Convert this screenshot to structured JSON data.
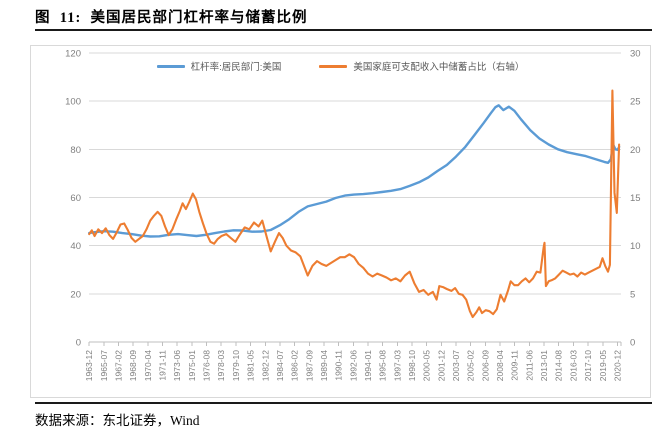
{
  "figure": {
    "label": "图  11:  美国居民部门杠杆率与储蓄比例",
    "source": "数据来源：东北证券，Wind"
  },
  "chart_data": {
    "type": "line",
    "title": "美国居民部门杠杆率与储蓄比例",
    "grid": "horizontal",
    "legend_position": "top-center",
    "colors": {
      "leverage": "#5B9BD5",
      "saving": "#ED7D31",
      "gridline": "#d9d9d9",
      "axis_line": "#bfbfbf",
      "tick_text": "#7f7f7f"
    },
    "legend": [
      {
        "name": "杠杆率:居民部门:美国",
        "color": "#5B9BD5",
        "axis": "left"
      },
      {
        "name": "美国家庭可支配收入中储蓄占比（右轴）",
        "color": "#ED7D31",
        "axis": "right"
      }
    ],
    "y_left": {
      "min": 0,
      "max": 120,
      "step": 20,
      "ticks": [
        0,
        20,
        40,
        60,
        80,
        100,
        120
      ]
    },
    "y_right": {
      "min": 0,
      "max": 30,
      "step": 5,
      "ticks": [
        0,
        5,
        10,
        15,
        20,
        25,
        30
      ]
    },
    "x_axis": {
      "type": "date",
      "first": "1963-12",
      "last": "2020-12",
      "label_interval_months": 19,
      "labels": [
        "1963-12",
        "1965-07",
        "1967-02",
        "1968-09",
        "1970-04",
        "1971-11",
        "1973-06",
        "1975-01",
        "1976-08",
        "1978-03",
        "1979-10",
        "1981-05",
        "1982-12",
        "1984-07",
        "1986-02",
        "1987-09",
        "1989-04",
        "1990-11",
        "1992-06",
        "1994-01",
        "1995-08",
        "1997-03",
        "1998-10",
        "2000-05",
        "2001-12",
        "2003-07",
        "2005-02",
        "2006-09",
        "2008-04",
        "2009-11",
        "2011-06",
        "2013-01",
        "2014-08",
        "2016-03",
        "2017-10",
        "2019-05",
        "2020-12"
      ]
    },
    "series": [
      {
        "name": "杠杆率:居民部门:美国",
        "axis": "left",
        "color": "#5B9BD5",
        "points": [
          [
            1963.92,
            45.2
          ],
          [
            1964.5,
            45.6
          ],
          [
            1965.5,
            46.0
          ],
          [
            1966.5,
            45.8
          ],
          [
            1967.5,
            45.2
          ],
          [
            1968.5,
            44.8
          ],
          [
            1969.5,
            44.2
          ],
          [
            1970.5,
            43.8
          ],
          [
            1971.5,
            43.9
          ],
          [
            1972.5,
            44.5
          ],
          [
            1973.5,
            44.8
          ],
          [
            1974.5,
            44.4
          ],
          [
            1975.5,
            44.0
          ],
          [
            1976.5,
            44.5
          ],
          [
            1977.5,
            45.2
          ],
          [
            1978.5,
            45.9
          ],
          [
            1979.5,
            46.4
          ],
          [
            1980.5,
            46.3
          ],
          [
            1981.5,
            45.8
          ],
          [
            1982.5,
            45.9
          ],
          [
            1983.5,
            46.5
          ],
          [
            1984.5,
            48.5
          ],
          [
            1985.5,
            51.0
          ],
          [
            1986.5,
            54.0
          ],
          [
            1987.5,
            56.3
          ],
          [
            1988.5,
            57.3
          ],
          [
            1989.5,
            58.3
          ],
          [
            1990.5,
            59.8
          ],
          [
            1991.5,
            60.8
          ],
          [
            1992.5,
            61.2
          ],
          [
            1993.5,
            61.4
          ],
          [
            1994.5,
            61.8
          ],
          [
            1995.5,
            62.3
          ],
          [
            1996.5,
            62.8
          ],
          [
            1997.5,
            63.5
          ],
          [
            1998.5,
            64.8
          ],
          [
            1999.5,
            66.3
          ],
          [
            2000.5,
            68.3
          ],
          [
            2001.5,
            71.0
          ],
          [
            2002.5,
            73.5
          ],
          [
            2003.5,
            77.0
          ],
          [
            2004.5,
            81.0
          ],
          [
            2005.5,
            86.0
          ],
          [
            2006.5,
            91.0
          ],
          [
            2007.25,
            95.0
          ],
          [
            2007.75,
            97.5
          ],
          [
            2008.1,
            98.3
          ],
          [
            2008.6,
            96.3
          ],
          [
            2009.2,
            97.7
          ],
          [
            2009.8,
            96.0
          ],
          [
            2010.5,
            92.5
          ],
          [
            2011.5,
            88.0
          ],
          [
            2012.5,
            84.5
          ],
          [
            2013.5,
            82.0
          ],
          [
            2014.5,
            80.0
          ],
          [
            2015.5,
            78.8
          ],
          [
            2016.5,
            78.0
          ],
          [
            2017.5,
            77.2
          ],
          [
            2018.5,
            76.0
          ],
          [
            2019.5,
            74.8
          ],
          [
            2019.9,
            74.4
          ],
          [
            2020.2,
            75.8
          ],
          [
            2020.45,
            82.0
          ],
          [
            2020.7,
            80.0
          ],
          [
            2020.95,
            79.8
          ],
          [
            2021.1,
            81.0
          ]
        ]
      },
      {
        "name": "美国家庭可支配收入中储蓄占比（右轴）",
        "axis": "right",
        "color": "#ED7D31",
        "points": [
          [
            1963.92,
            11.2
          ],
          [
            1964.2,
            11.6
          ],
          [
            1964.5,
            11.0
          ],
          [
            1964.9,
            11.7
          ],
          [
            1965.3,
            11.3
          ],
          [
            1965.7,
            11.8
          ],
          [
            1966.1,
            11.1
          ],
          [
            1966.5,
            10.7
          ],
          [
            1966.9,
            11.4
          ],
          [
            1967.3,
            12.2
          ],
          [
            1967.7,
            12.3
          ],
          [
            1968.1,
            11.6
          ],
          [
            1968.5,
            10.8
          ],
          [
            1968.9,
            10.4
          ],
          [
            1969.3,
            10.7
          ],
          [
            1969.7,
            11.0
          ],
          [
            1970.1,
            11.7
          ],
          [
            1970.5,
            12.6
          ],
          [
            1970.9,
            13.1
          ],
          [
            1971.3,
            13.5
          ],
          [
            1971.7,
            13.1
          ],
          [
            1972.1,
            12.0
          ],
          [
            1972.5,
            11.1
          ],
          [
            1972.9,
            11.7
          ],
          [
            1973.3,
            12.7
          ],
          [
            1973.7,
            13.6
          ],
          [
            1974.0,
            14.4
          ],
          [
            1974.35,
            13.8
          ],
          [
            1974.7,
            14.5
          ],
          [
            1975.1,
            15.4
          ],
          [
            1975.45,
            14.8
          ],
          [
            1975.8,
            13.5
          ],
          [
            1976.2,
            12.3
          ],
          [
            1976.6,
            11.2
          ],
          [
            1977.0,
            10.4
          ],
          [
            1977.4,
            10.2
          ],
          [
            1977.8,
            10.7
          ],
          [
            1978.2,
            11.0
          ],
          [
            1978.7,
            11.2
          ],
          [
            1979.2,
            10.8
          ],
          [
            1979.7,
            10.4
          ],
          [
            1980.2,
            11.2
          ],
          [
            1980.7,
            11.9
          ],
          [
            1981.2,
            11.7
          ],
          [
            1981.7,
            12.4
          ],
          [
            1982.2,
            12.0
          ],
          [
            1982.6,
            12.6
          ],
          [
            1983.1,
            10.8
          ],
          [
            1983.5,
            9.4
          ],
          [
            1984.0,
            10.5
          ],
          [
            1984.4,
            11.3
          ],
          [
            1984.8,
            10.8
          ],
          [
            1985.2,
            10.0
          ],
          [
            1985.7,
            9.5
          ],
          [
            1986.2,
            9.3
          ],
          [
            1986.7,
            8.9
          ],
          [
            1987.1,
            7.9
          ],
          [
            1987.5,
            6.9
          ],
          [
            1988.0,
            7.9
          ],
          [
            1988.5,
            8.4
          ],
          [
            1989.0,
            8.1
          ],
          [
            1989.5,
            7.9
          ],
          [
            1990.0,
            8.2
          ],
          [
            1990.5,
            8.5
          ],
          [
            1991.0,
            8.8
          ],
          [
            1991.5,
            8.8
          ],
          [
            1992.0,
            9.1
          ],
          [
            1992.5,
            8.8
          ],
          [
            1993.0,
            8.1
          ],
          [
            1993.5,
            7.7
          ],
          [
            1994.0,
            7.1
          ],
          [
            1994.5,
            6.8
          ],
          [
            1995.0,
            7.1
          ],
          [
            1995.5,
            6.9
          ],
          [
            1996.0,
            6.7
          ],
          [
            1996.5,
            6.4
          ],
          [
            1997.0,
            6.6
          ],
          [
            1997.5,
            6.3
          ],
          [
            1998.0,
            6.9
          ],
          [
            1998.5,
            7.3
          ],
          [
            1999.0,
            6.1
          ],
          [
            1999.5,
            5.2
          ],
          [
            2000.0,
            5.4
          ],
          [
            2000.5,
            4.9
          ],
          [
            2001.0,
            5.2
          ],
          [
            2001.4,
            4.4
          ],
          [
            2001.7,
            5.8
          ],
          [
            2002.1,
            5.7
          ],
          [
            2002.5,
            5.5
          ],
          [
            2003.0,
            5.3
          ],
          [
            2003.4,
            5.6
          ],
          [
            2003.8,
            5.0
          ],
          [
            2004.2,
            4.9
          ],
          [
            2004.6,
            4.4
          ],
          [
            2005.0,
            3.2
          ],
          [
            2005.3,
            2.6
          ],
          [
            2005.7,
            3.1
          ],
          [
            2006.0,
            3.6
          ],
          [
            2006.3,
            3.0
          ],
          [
            2006.7,
            3.3
          ],
          [
            2007.1,
            3.2
          ],
          [
            2007.5,
            2.9
          ],
          [
            2007.9,
            3.4
          ],
          [
            2008.3,
            4.9
          ],
          [
            2008.7,
            4.2
          ],
          [
            2009.1,
            5.3
          ],
          [
            2009.4,
            6.3
          ],
          [
            2009.8,
            5.9
          ],
          [
            2010.2,
            5.9
          ],
          [
            2010.6,
            6.3
          ],
          [
            2011.0,
            6.6
          ],
          [
            2011.4,
            6.2
          ],
          [
            2011.8,
            6.6
          ],
          [
            2012.2,
            7.3
          ],
          [
            2012.6,
            7.2
          ],
          [
            2012.95,
            9.8
          ],
          [
            2013.05,
            10.3
          ],
          [
            2013.2,
            5.8
          ],
          [
            2013.5,
            6.3
          ],
          [
            2013.8,
            6.4
          ],
          [
            2014.2,
            6.6
          ],
          [
            2014.6,
            7.0
          ],
          [
            2015.0,
            7.4
          ],
          [
            2015.4,
            7.2
          ],
          [
            2015.8,
            7.0
          ],
          [
            2016.2,
            7.1
          ],
          [
            2016.6,
            6.8
          ],
          [
            2017.0,
            7.2
          ],
          [
            2017.4,
            7.0
          ],
          [
            2017.8,
            7.2
          ],
          [
            2018.2,
            7.4
          ],
          [
            2018.6,
            7.6
          ],
          [
            2019.0,
            7.8
          ],
          [
            2019.3,
            8.7
          ],
          [
            2019.6,
            7.9
          ],
          [
            2019.9,
            7.3
          ],
          [
            2020.1,
            8.0
          ],
          [
            2020.37,
            26.1
          ],
          [
            2020.6,
            15.5
          ],
          [
            2020.85,
            13.4
          ],
          [
            2021.1,
            20.5
          ]
        ]
      }
    ]
  }
}
